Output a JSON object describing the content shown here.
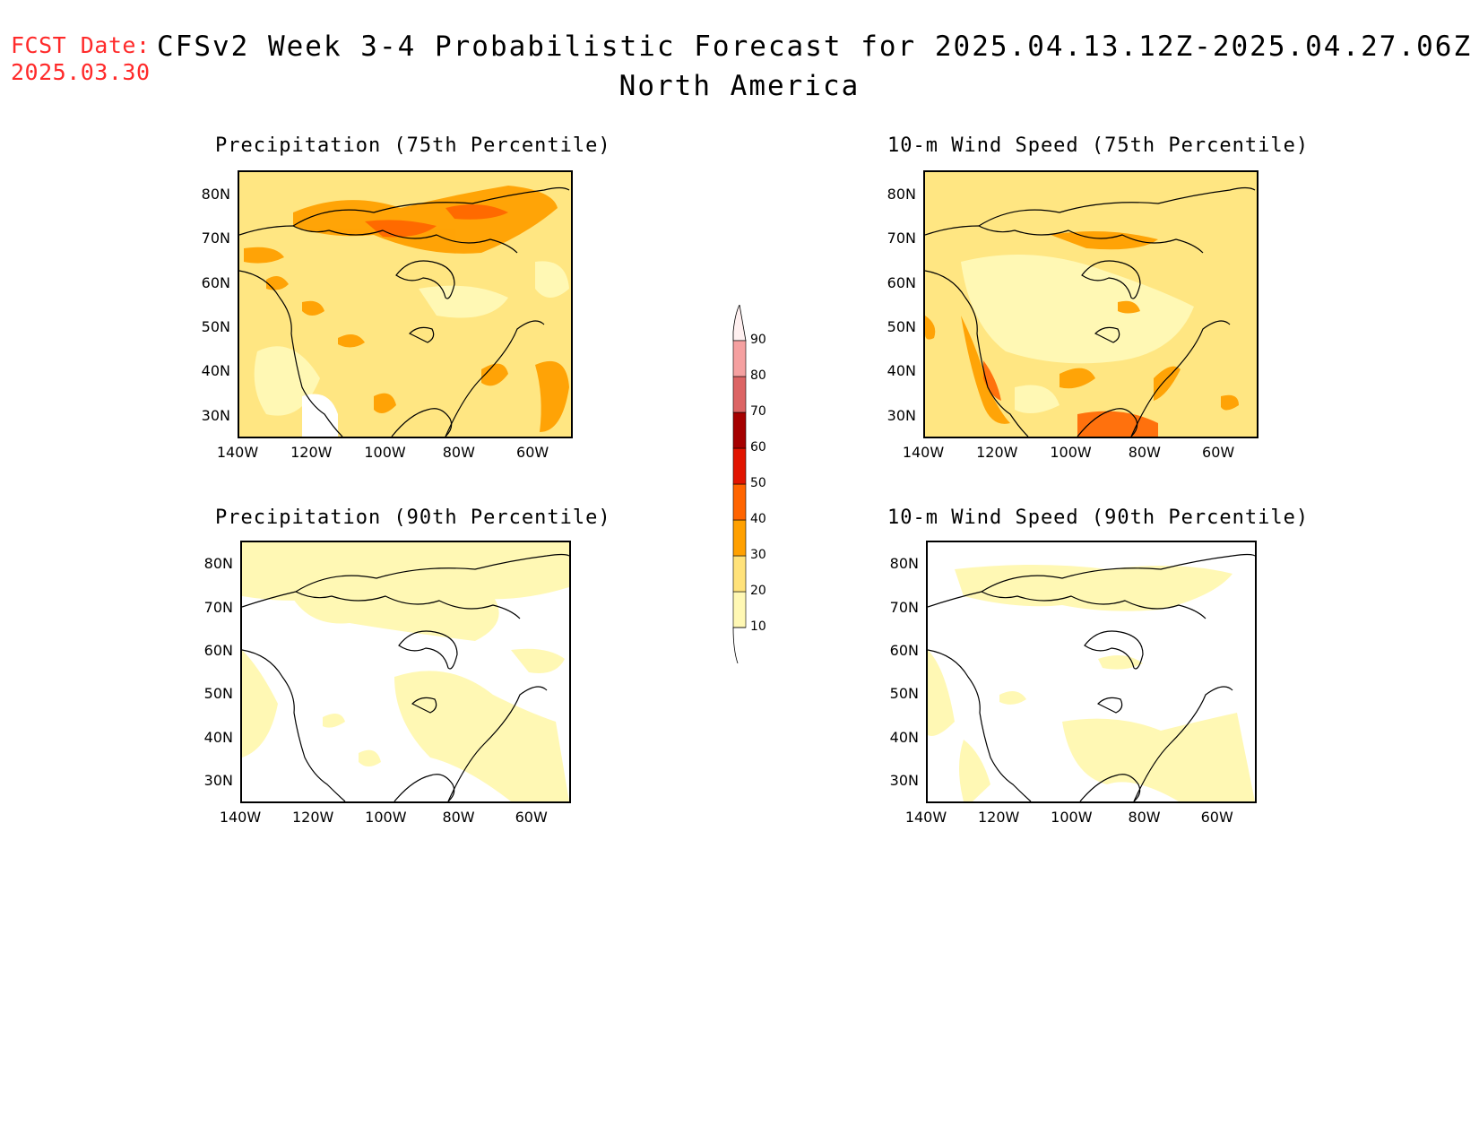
{
  "header": {
    "fcst_label": "FCST Date:",
    "fcst_date": "2025.03.30",
    "title": "CFSv2 Week 3-4 Probabilistic Forecast for 2025.04.13.12Z-2025.04.27.06Z",
    "subtitle": "North America"
  },
  "axes": {
    "lat_labels": [
      "80N",
      "70N",
      "60N",
      "50N",
      "40N",
      "30N"
    ],
    "lon_labels": [
      "140W",
      "120W",
      "100W",
      "80W",
      "60W"
    ]
  },
  "panels": [
    {
      "id": "precip75",
      "title": "Precipitation (75th Percentile)",
      "base_color": "#ffe682"
    },
    {
      "id": "wind75",
      "title": "10-m Wind Speed (75th Percentile)",
      "base_color": "#ffe682"
    },
    {
      "id": "precip90",
      "title": "Precipitation (90th Percentile)",
      "base_color": "#ffffff"
    },
    {
      "id": "wind90",
      "title": "10-m Wind Speed (90th Percentile)",
      "base_color": "#ffffff"
    }
  ],
  "colorbar": {
    "levels": [
      "10",
      "20",
      "30",
      "40",
      "50",
      "60",
      "70",
      "80",
      "90"
    ],
    "colors": [
      "#fff8b4",
      "#ffe27a",
      "#ffa000",
      "#ff6400",
      "#e11400",
      "#a50000",
      "#dc6464",
      "#f5a0a0",
      "#ffe6e6"
    ]
  }
}
